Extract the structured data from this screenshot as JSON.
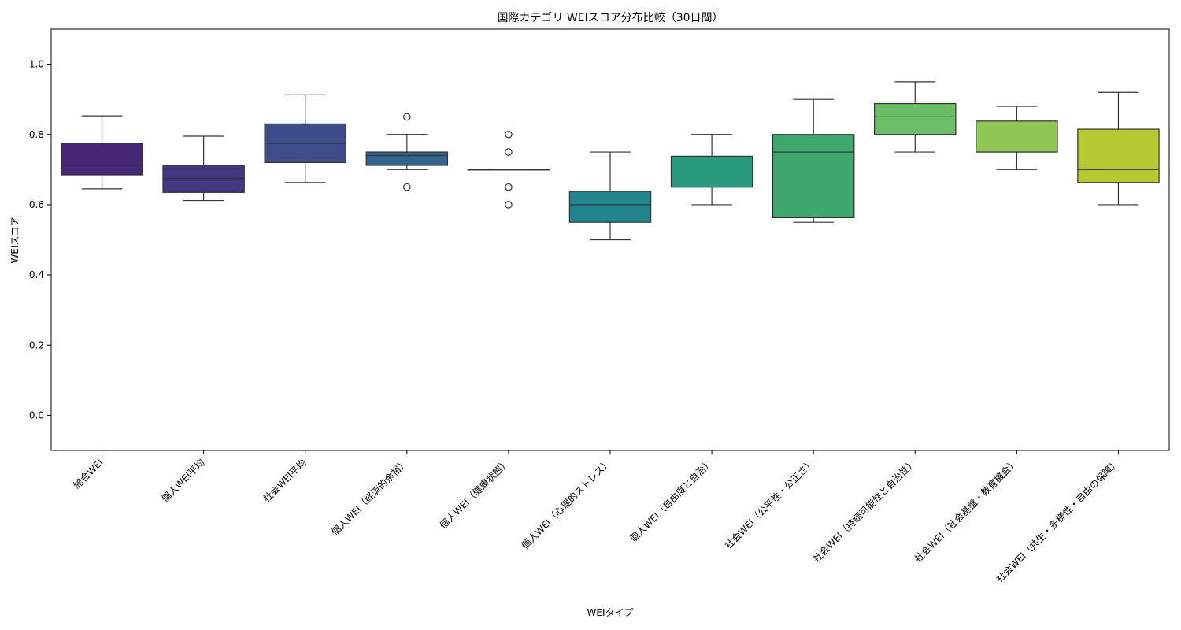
{
  "chart_data": {
    "type": "box",
    "title": "国際カテゴリ WEIスコア分布比較（30日間）",
    "xlabel": "WEIタイプ",
    "ylabel": "WEIスコア",
    "ylim": [
      -0.1,
      1.1
    ],
    "yticks": [
      0.0,
      0.2,
      0.4,
      0.6,
      0.8,
      1.0
    ],
    "ytick_labels": [
      "0.0",
      "0.2",
      "0.4",
      "0.6",
      "0.8",
      "1.0"
    ],
    "grid": false,
    "categories": [
      "総合WEI",
      "個人WEI平均",
      "社会WEI平均",
      "個人WEI（経済的余裕）",
      "個人WEI（健康状態）",
      "個人WEI（心理的ストレス）",
      "個人WEI（自由度と自治）",
      "社会WEI（公平性・公正さ）",
      "社会WEI（持続可能性と自治性）",
      "社会WEI（社会基盤・教育機会）",
      "社会WEI（共生・多様性・自由の保障）"
    ],
    "boxes": [
      {
        "whisker_low": 0.645,
        "q1": 0.685,
        "median": 0.712,
        "q3": 0.775,
        "whisker_high": 0.853,
        "outliers": [],
        "color": "#482677"
      },
      {
        "whisker_low": 0.612,
        "q1": 0.635,
        "median": 0.675,
        "q3": 0.712,
        "whisker_high": 0.795,
        "outliers": [],
        "color": "#453882"
      },
      {
        "whisker_low": 0.663,
        "q1": 0.72,
        "median": 0.775,
        "q3": 0.83,
        "whisker_high": 0.913,
        "outliers": [],
        "color": "#3e4c8a"
      },
      {
        "whisker_low": 0.7,
        "q1": 0.712,
        "median": 0.74,
        "q3": 0.75,
        "whisker_high": 0.8,
        "outliers": [
          0.65,
          0.85
        ],
        "color": "#32648e"
      },
      {
        "whisker_low": 0.7,
        "q1": 0.7,
        "median": 0.7,
        "q3": 0.7,
        "whisker_high": 0.7,
        "outliers": [
          0.6,
          0.65,
          0.75,
          0.8
        ],
        "color": "#2a788e"
      },
      {
        "whisker_low": 0.5,
        "q1": 0.55,
        "median": 0.6,
        "q3": 0.638,
        "whisker_high": 0.75,
        "outliers": [],
        "color": "#22848c"
      },
      {
        "whisker_low": 0.6,
        "q1": 0.65,
        "median": 0.65,
        "q3": 0.738,
        "whisker_high": 0.8,
        "outliers": [],
        "color": "#2a9a7f"
      },
      {
        "whisker_low": 0.55,
        "q1": 0.563,
        "median": 0.75,
        "q3": 0.8,
        "whisker_high": 0.9,
        "outliers": [],
        "color": "#3fa86e"
      },
      {
        "whisker_low": 0.75,
        "q1": 0.8,
        "median": 0.85,
        "q3": 0.888,
        "whisker_high": 0.95,
        "outliers": [],
        "color": "#6cbe66"
      },
      {
        "whisker_low": 0.7,
        "q1": 0.75,
        "median": 0.75,
        "q3": 0.838,
        "whisker_high": 0.88,
        "outliers": [],
        "color": "#8fc655"
      },
      {
        "whisker_low": 0.6,
        "q1": 0.663,
        "median": 0.7,
        "q3": 0.815,
        "whisker_high": 0.92,
        "outliers": [],
        "color": "#b6c932"
      }
    ]
  }
}
